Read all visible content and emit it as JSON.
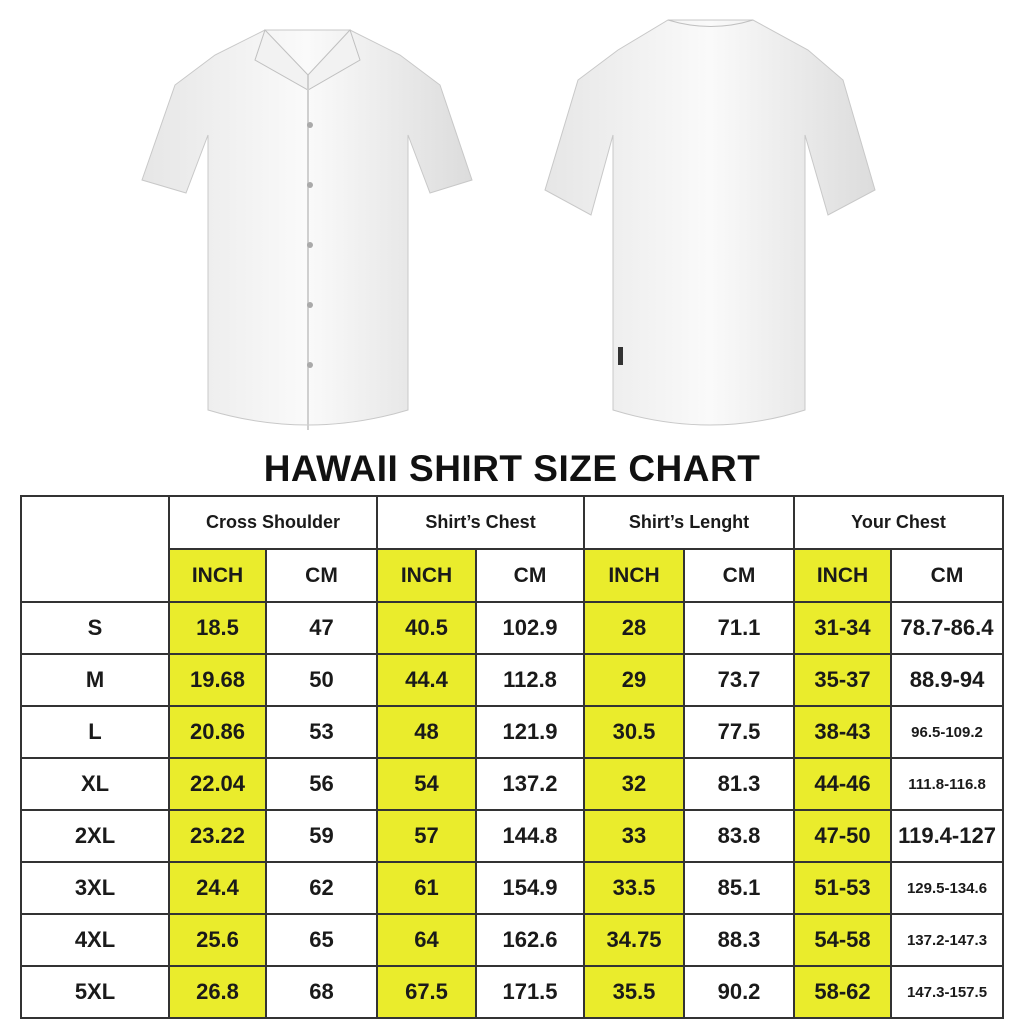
{
  "title": "HAWAII SHIRT SIZE CHART",
  "images": {
    "front": "shirt-front",
    "back": "shirt-back"
  },
  "colors": {
    "highlight": "#eaec2c",
    "border": "#333333"
  },
  "chart_data": {
    "type": "table",
    "title": "HAWAII SHIRT SIZE CHART",
    "groups": [
      "Cross Shoulder",
      "Shirt’s Chest",
      "Shirt’s Lenght",
      "Your Chest"
    ],
    "units": [
      "INCH",
      "CM"
    ],
    "rows": [
      {
        "size": "S",
        "cells": [
          "18.5",
          "47",
          "40.5",
          "102.9",
          "28",
          "71.1",
          "31-34",
          "78.7-86.4"
        ]
      },
      {
        "size": "M",
        "cells": [
          "19.68",
          "50",
          "44.4",
          "112.8",
          "29",
          "73.7",
          "35-37",
          "88.9-94"
        ]
      },
      {
        "size": "L",
        "cells": [
          "20.86",
          "53",
          "48",
          "121.9",
          "30.5",
          "77.5",
          "38-43",
          "96.5-109.2"
        ]
      },
      {
        "size": "XL",
        "cells": [
          "22.04",
          "56",
          "54",
          "137.2",
          "32",
          "81.3",
          "44-46",
          "111.8-116.8"
        ]
      },
      {
        "size": "2XL",
        "cells": [
          "23.22",
          "59",
          "57",
          "144.8",
          "33",
          "83.8",
          "47-50",
          "119.4-127"
        ]
      },
      {
        "size": "3XL",
        "cells": [
          "24.4",
          "62",
          "61",
          "154.9",
          "33.5",
          "85.1",
          "51-53",
          "129.5-134.6"
        ]
      },
      {
        "size": "4XL",
        "cells": [
          "25.6",
          "65",
          "64",
          "162.6",
          "34.75",
          "88.3",
          "54-58",
          "137.2-147.3"
        ]
      },
      {
        "size": "5XL",
        "cells": [
          "26.8",
          "68",
          "67.5",
          "171.5",
          "35.5",
          "90.2",
          "58-62",
          "147.3-157.5"
        ]
      }
    ]
  }
}
